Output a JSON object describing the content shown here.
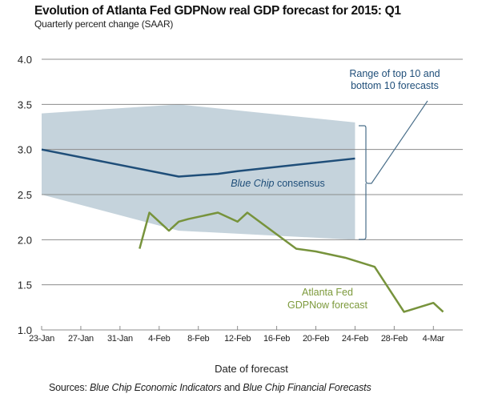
{
  "chart_data": {
    "type": "line",
    "title": "Evolution of Atlanta Fed GDPNow real GDP forecast for 2015: Q1",
    "subtitle": "Quarterly percent change (SAAR)",
    "xlabel": "Date of forecast",
    "ylabel": "",
    "ylim": [
      1.0,
      4.0
    ],
    "yticks": [
      "4.0",
      "3.5",
      "3.0",
      "2.5",
      "2.0",
      "1.5",
      "1.0"
    ],
    "ytick_values": [
      4.0,
      3.5,
      3.0,
      2.5,
      2.0,
      1.5,
      1.0
    ],
    "xrange_days_from_23jan": [
      0,
      43
    ],
    "xticks": [
      "23-Jan",
      "27-Jan",
      "31-Jan",
      "4-Feb",
      "8-Feb",
      "12-Feb",
      "16-Feb",
      "20-Feb",
      "24-Feb",
      "28-Feb",
      "4-Mar"
    ],
    "xtick_days": [
      0,
      4,
      8,
      12,
      16,
      20,
      24,
      28,
      32,
      36,
      40
    ],
    "grid": true,
    "series": [
      {
        "name": "Blue Chip consensus",
        "color": "#1f4e79",
        "x_days": [
          0,
          14,
          18,
          20,
          32
        ],
        "values": [
          3.0,
          2.7,
          2.73,
          2.76,
          2.9
        ]
      },
      {
        "name": "Atlanta Fed GDPNow forecast",
        "color": "#77933c",
        "x_days": [
          10,
          11,
          13,
          14,
          15,
          18,
          20,
          21,
          24,
          26,
          28,
          31,
          34,
          37,
          40,
          41
        ],
        "values": [
          1.9,
          2.3,
          2.1,
          2.2,
          2.23,
          2.3,
          2.2,
          2.3,
          2.06,
          1.9,
          1.87,
          1.8,
          1.7,
          1.2,
          1.3,
          1.2
        ]
      }
    ],
    "band": {
      "name": "Range of top 10 and bottom 10 forecasts",
      "color": "#c5d3dc",
      "x_days": [
        0,
        14,
        32
      ],
      "upper": [
        3.4,
        3.5,
        3.3
      ],
      "lower": [
        2.5,
        2.1,
        2.0
      ]
    },
    "annotations": {
      "band_label_line1": "Range of top 10 and",
      "band_label_line2": "bottom 10 forecasts",
      "bluechip_label_italic": "Blue Chip",
      "bluechip_label_rest": " consensus",
      "gdpnow_label_line1": "Atlanta Fed",
      "gdpnow_label_line2": "GDPNow forecast"
    }
  },
  "sources": {
    "prefix": "Sources:  ",
    "italic1": "Blue Chip Economic Indicators",
    "mid": " and ",
    "italic2": "Blue Chip Financial Forecasts"
  },
  "colors": {
    "grid": "#8c8c8c",
    "band": "#c5d3dc",
    "bluechip": "#1f4e79",
    "gdpnow": "#77933c",
    "bracket": "#4a6f8a"
  }
}
